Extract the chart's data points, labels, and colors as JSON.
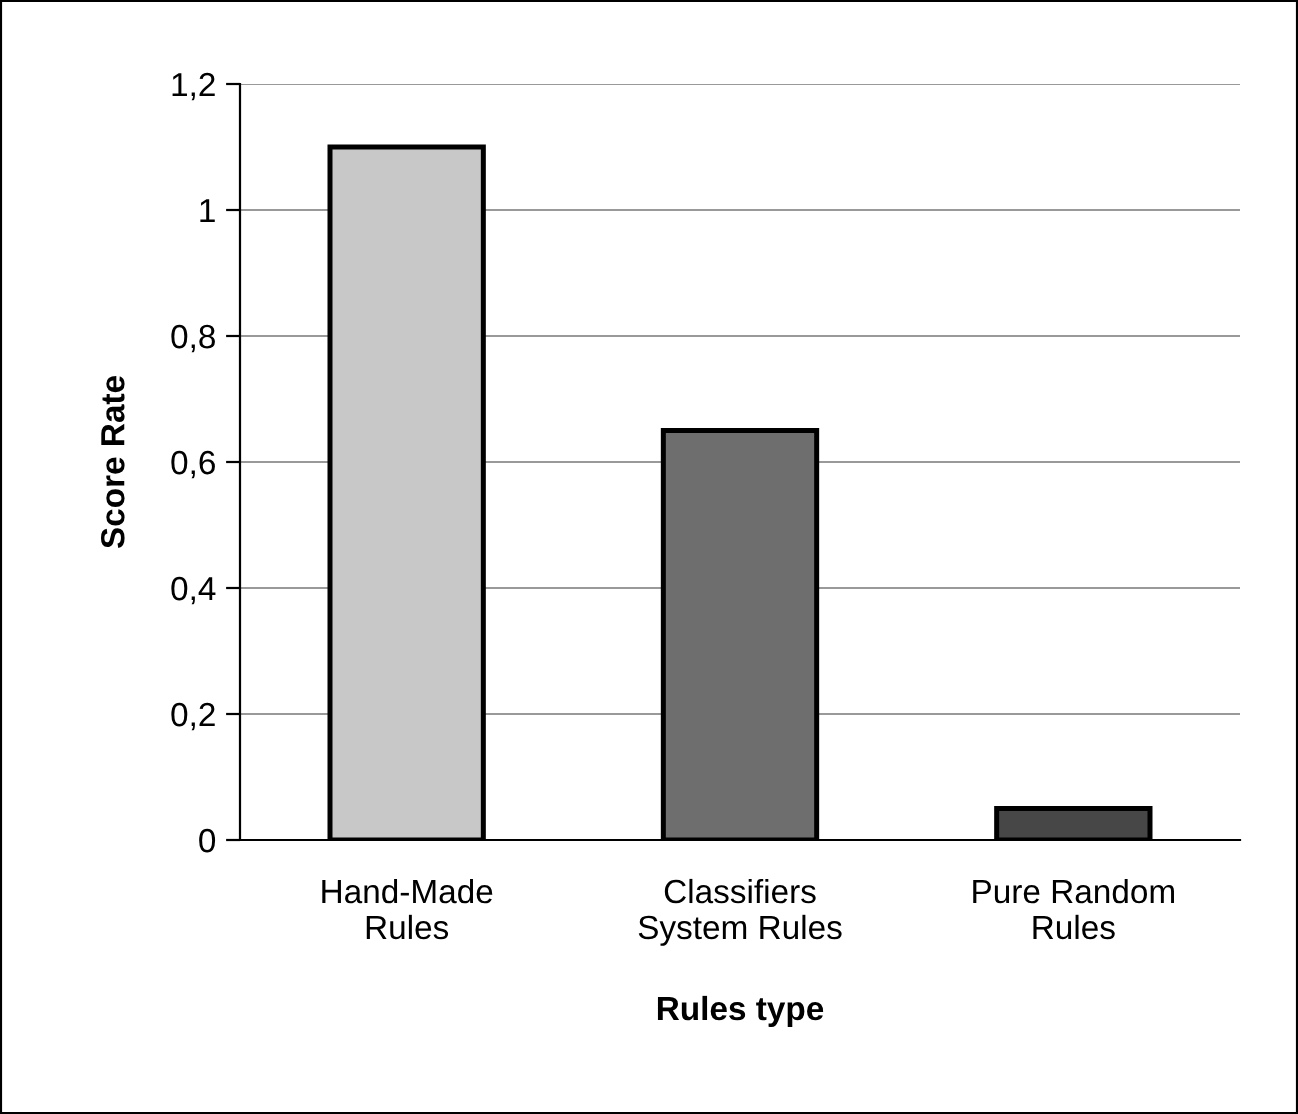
{
  "chart_data": {
    "type": "bar",
    "xlabel": "Rules type",
    "ylabel": "Score Rate",
    "categories": [
      "Hand-Made\nRules",
      "Classifiers\nSystem Rules",
      "Pure Random\nRules"
    ],
    "values": [
      1.1,
      0.65,
      0.05
    ],
    "colors": [
      "#c8c8c8",
      "#6e6e6e",
      "#474747"
    ],
    "ylim": [
      0,
      1.2
    ],
    "yticks": [
      0,
      {
        "value": 0.2,
        "label": "0,2"
      },
      {
        "value": 0.4,
        "label": "0,4"
      },
      {
        "value": 0.6,
        "label": "0,6"
      },
      {
        "value": 0.8,
        "label": "0,8"
      },
      1,
      {
        "value": 1.2,
        "label": "1,2"
      }
    ],
    "grid": "y",
    "legend": false
  }
}
